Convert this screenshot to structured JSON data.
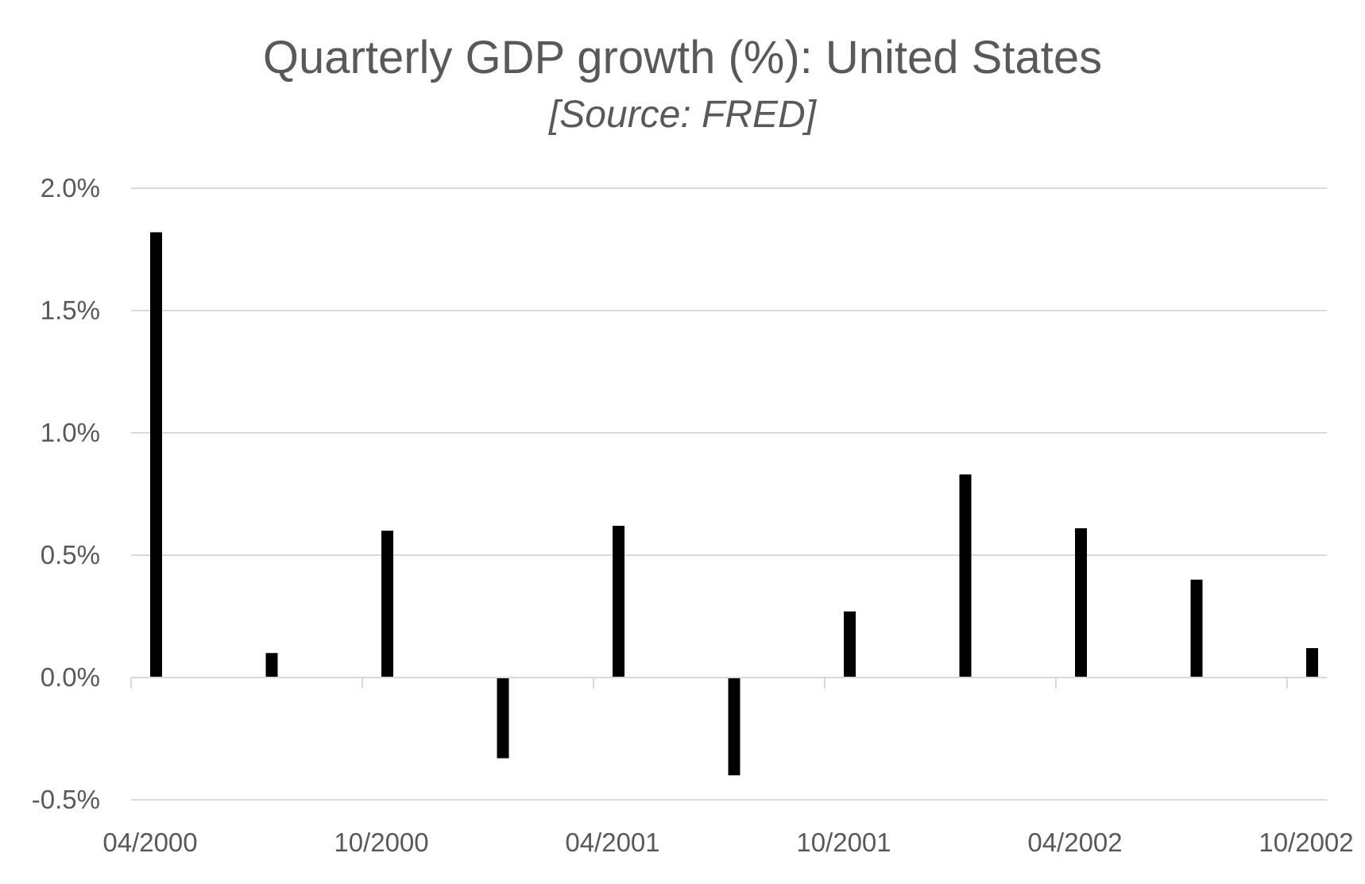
{
  "chart_data": {
    "type": "bar",
    "title": "Quarterly GDP growth  (%): United States",
    "subtitle": "[Source: FRED]",
    "xlabel": "",
    "ylabel": "",
    "x_dates": [
      "2000-04",
      "2000-07",
      "2000-10",
      "2001-01",
      "2001-04",
      "2001-07",
      "2001-10",
      "2002-01",
      "2002-04",
      "2002-07",
      "2002-10"
    ],
    "values": [
      1.82,
      0.1,
      0.6,
      -0.33,
      0.62,
      -0.4,
      0.27,
      0.83,
      0.61,
      0.4,
      0.12
    ],
    "ylim": [
      -0.5,
      2.0
    ],
    "y_ticks": [
      2.0,
      1.5,
      1.0,
      0.5,
      0.0,
      -0.5
    ],
    "y_tick_labels": [
      "2.0%",
      "1.5%",
      "1.0%",
      "0.5%",
      "0.0%",
      "-0.5%"
    ],
    "x_tick_labels": [
      "04/2000",
      "10/2000",
      "04/2001",
      "10/2001",
      "04/2002",
      "10/2002"
    ],
    "grid": true,
    "legend": "none",
    "bar_color": "#000000",
    "grid_color": "#d9d9d9",
    "text_color": "#595959"
  }
}
